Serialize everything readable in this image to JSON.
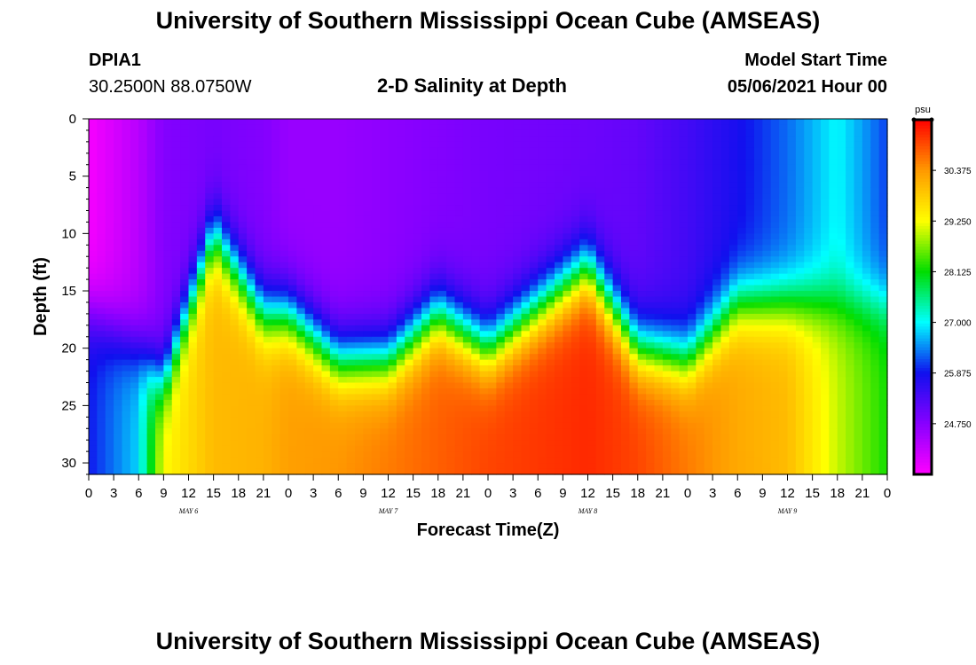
{
  "header": {
    "title_top": "University of Southern Mississippi Ocean Cube (AMSEAS)",
    "title_bottom": "University of Southern Mississippi Ocean Cube (AMSEAS)",
    "station": "DPIA1",
    "coords": "30.2500N  88.0750W",
    "plot_title": "2-D Salinity at Depth",
    "model_start_label": "Model Start Time",
    "model_start_value": "05/06/2021 Hour 00"
  },
  "chart_data": {
    "type": "heatmap",
    "title": "2-D Salinity at Depth",
    "xlabel": "Forecast Time(Z)",
    "ylabel": "Depth (ft)",
    "x_range_hours": [
      0,
      96
    ],
    "y_range_ft": [
      0,
      31
    ],
    "y_ticks": [
      "0",
      "5",
      "10",
      "15",
      "20",
      "25",
      "30"
    ],
    "x_tick_labels": [
      "0",
      "3",
      "6",
      "9",
      "12",
      "15",
      "18",
      "21",
      "0",
      "3",
      "6",
      "9",
      "12",
      "15",
      "18",
      "21",
      "0",
      "3",
      "6",
      "9",
      "12",
      "15",
      "18",
      "21",
      "0",
      "3",
      "6",
      "9",
      "12",
      "15",
      "18",
      "21",
      "0"
    ],
    "day_labels": [
      {
        "label": "MAY  6",
        "hour": 12
      },
      {
        "label": "MAY  7",
        "hour": 36
      },
      {
        "label": "MAY  8",
        "hour": 60
      },
      {
        "label": "MAY  9",
        "hour": 84
      }
    ],
    "colorbar": {
      "unit": "psu",
      "min": 23.625,
      "max": 31.5,
      "ticks": [
        "24.750",
        "25.875",
        "27.000",
        "28.125",
        "29.250",
        "30.375"
      ],
      "colors": [
        "#ff00ff",
        "#8800ff",
        "#1010ee",
        "#00ffff",
        "#00dd00",
        "#ffff00",
        "#ff9900",
        "#ff0000"
      ]
    },
    "surface_salinity_psu": [
      23.7,
      24.3,
      24.8,
      24.9,
      24.8,
      24.6,
      24.6,
      24.7,
      24.8,
      24.9,
      25.0,
      25.1,
      25.4,
      25.8,
      26.3,
      27.0,
      26.1
    ],
    "halocline_depth_ft": [
      17,
      20,
      23,
      10,
      17,
      17,
      21,
      21,
      17,
      20,
      13,
      20,
      21,
      16,
      16,
      16,
      16
    ],
    "bottom_salinity_psu": [
      25.9,
      26.8,
      29.3,
      30.0,
      30.1,
      30.3,
      30.4,
      30.6,
      30.8,
      31.0,
      31.2,
      31.0,
      30.6,
      30.2,
      30.0,
      29.0,
      28.2
    ],
    "profile_hours": [
      0,
      6,
      9,
      15,
      21,
      24,
      30,
      36,
      42,
      48,
      60,
      66,
      72,
      78,
      84,
      90,
      96
    ]
  }
}
